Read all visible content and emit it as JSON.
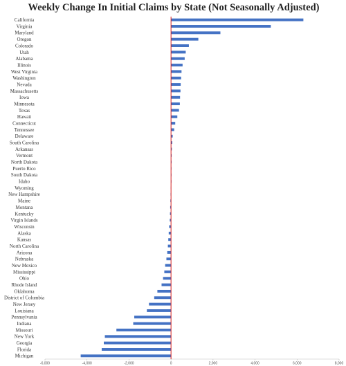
{
  "chart_data": {
    "type": "bar",
    "orientation": "horizontal",
    "title": "Weekly Change In Initial Claims by State (Not Seasonally Adjusted)",
    "xlabel": "",
    "ylabel": "",
    "xlim": [
      -6000,
      8000
    ],
    "xticks": [
      -6000,
      -4000,
      -2000,
      0,
      2000,
      4000,
      6000,
      8000
    ],
    "xtick_labels": [
      "-6,000",
      "-4,000",
      "-2,000",
      "0",
      "2,000",
      "4,000",
      "6,000",
      "8,000"
    ],
    "grid": false,
    "legend": "none",
    "bar_color": "#4472c4",
    "zero_line_color": "#d42020",
    "categories": [
      "California",
      "Virginia",
      "Maryland",
      "Oregon",
      "Colorado",
      "Utah",
      "Alabama",
      "Illinois",
      "West Virginia",
      "Washington",
      "Nevada",
      "Massachusetts",
      "Iowa",
      "Minnesota",
      "Texas",
      "Hawaii",
      "Connecticut",
      "Tennessee",
      "Delaware",
      "South Carolina",
      "Arkansas",
      "Vermont",
      "North Dakota",
      "Puerto Rico",
      "South Dakota",
      "Idaho",
      "Wyoming",
      "New Hampshire",
      "Maine",
      "Montana",
      "Kentucky",
      "Virgin Islands",
      "Wisconsin",
      "Alaska",
      "Kansas",
      "North Carolina",
      "Arizona",
      "Nebraska",
      "New Mexico",
      "Mississippi",
      "Ohio",
      "Rhode Island",
      "Oklahoma",
      "District of Columbia",
      "New Jersey",
      "Louisiana",
      "Pennsylvania",
      "Indiana",
      "Missouri",
      "New York",
      "Georgia",
      "Florida",
      "Michigan"
    ],
    "values": [
      6300,
      4750,
      2350,
      1300,
      850,
      700,
      650,
      550,
      500,
      480,
      460,
      450,
      430,
      420,
      380,
      300,
      200,
      150,
      80,
      60,
      40,
      30,
      25,
      20,
      10,
      5,
      -10,
      -20,
      -30,
      -40,
      -50,
      -60,
      -90,
      -110,
      -130,
      -150,
      -180,
      -220,
      -280,
      -320,
      -380,
      -450,
      -650,
      -800,
      -1050,
      -1150,
      -1750,
      -1800,
      -2600,
      -3150,
      -3200,
      -3300,
      -4300
    ]
  }
}
